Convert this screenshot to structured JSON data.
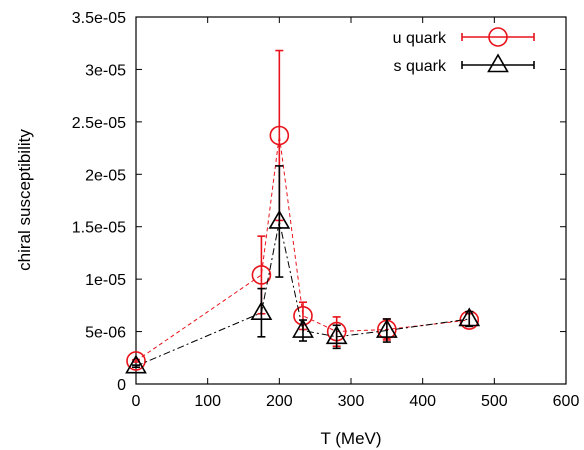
{
  "chart_data": {
    "type": "scatter",
    "xlabel": "T (MeV)",
    "ylabel": "chiral susceptibility",
    "xlim": [
      0,
      600
    ],
    "ylim": [
      0,
      3.5e-05
    ],
    "xticks": [
      0,
      100,
      200,
      300,
      400,
      500,
      600
    ],
    "xtick_labels": [
      "0",
      "100",
      "200",
      "300",
      "400",
      "500",
      "600"
    ],
    "yticks": [
      0,
      5e-06,
      1e-05,
      1.5e-05,
      2e-05,
      2.5e-05,
      3e-05,
      3.5e-05
    ],
    "ytick_labels": [
      "0",
      "5e-06",
      "1e-05",
      "1.5e-05",
      "2e-05",
      "2.5e-05",
      "3e-05",
      "3.5e-05"
    ],
    "grid": false,
    "legend_position": "top-right",
    "series": [
      {
        "name": "u quark",
        "color": "#e8131b",
        "marker": "circle",
        "line": "dashed",
        "points": [
          {
            "x": 0,
            "y": 2.2e-06,
            "err": 1e-07
          },
          {
            "x": 175,
            "y": 1.04e-05,
            "err": 3.7e-06
          },
          {
            "x": 200,
            "y": 2.37e-05,
            "err": 8.1e-06
          },
          {
            "x": 233,
            "y": 6.5e-06,
            "err": 1.3e-06
          },
          {
            "x": 280,
            "y": 5e-06,
            "err": 1.4e-06
          },
          {
            "x": 350,
            "y": 5.2e-06,
            "err": 1e-06
          },
          {
            "x": 465,
            "y": 6.1e-06,
            "err": 6e-07
          }
        ]
      },
      {
        "name": "s quark",
        "color": "#000000",
        "marker": "triangle",
        "line": "dash-dot",
        "points": [
          {
            "x": 0,
            "y": 1.7e-06,
            "err": 1e-07
          },
          {
            "x": 175,
            "y": 6.8e-06,
            "err": 2.3e-06
          },
          {
            "x": 200,
            "y": 1.55e-05,
            "err": 5.3e-06
          },
          {
            "x": 233,
            "y": 5.1e-06,
            "err": 1e-06
          },
          {
            "x": 280,
            "y": 4.5e-06,
            "err": 1.1e-06
          },
          {
            "x": 350,
            "y": 5.1e-06,
            "err": 1.1e-06
          },
          {
            "x": 465,
            "y": 6.2e-06,
            "err": 7e-07
          }
        ]
      }
    ]
  }
}
